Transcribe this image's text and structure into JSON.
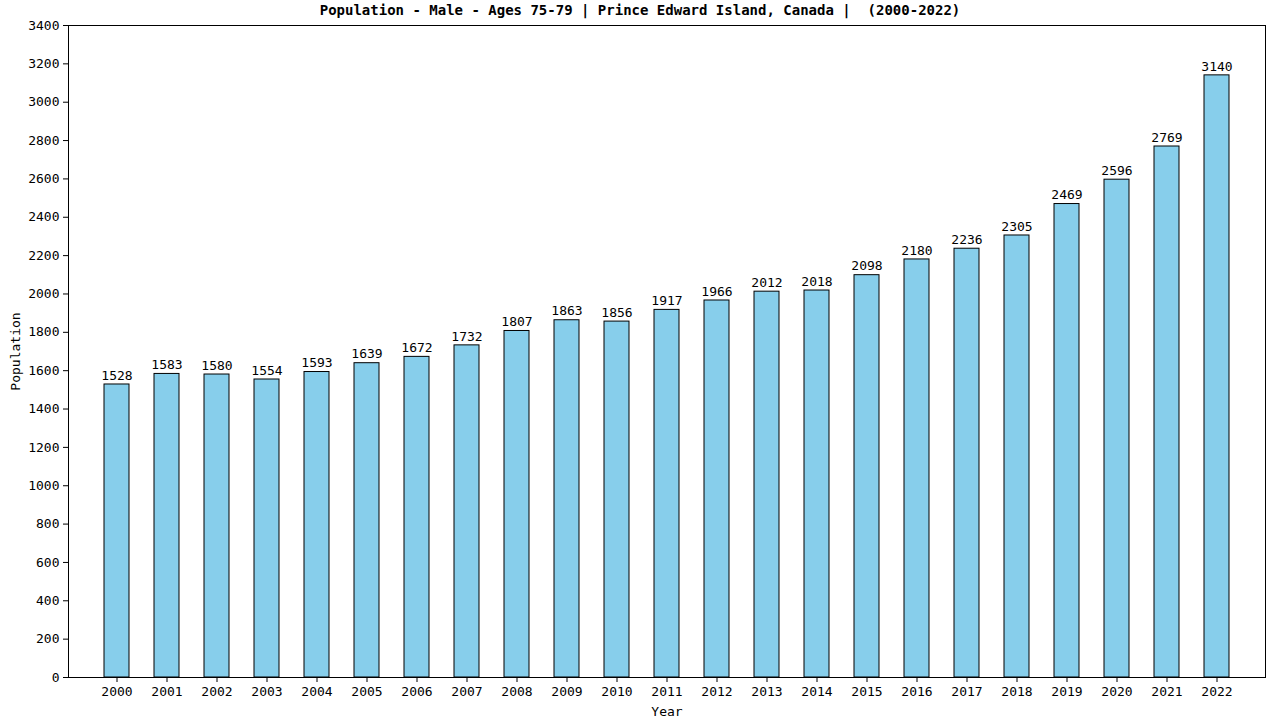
{
  "chart_data": {
    "type": "bar",
    "title": "Population - Male - Ages 75-79 | Prince Edward Island, Canada |  (2000-2022)",
    "x_label": "Year",
    "y_label": "Population",
    "categories": [
      "2000",
      "2001",
      "2002",
      "2003",
      "2004",
      "2005",
      "2006",
      "2007",
      "2008",
      "2009",
      "2010",
      "2011",
      "2012",
      "2013",
      "2014",
      "2015",
      "2016",
      "2017",
      "2018",
      "2019",
      "2020",
      "2021",
      "2022"
    ],
    "values": [
      1528,
      1583,
      1580,
      1554,
      1593,
      1639,
      1672,
      1732,
      1807,
      1863,
      1856,
      1917,
      1966,
      2012,
      2018,
      2098,
      2180,
      2236,
      2305,
      2469,
      2596,
      2769,
      3140
    ],
    "color": "#87ceeb",
    "ylim": [
      0,
      3400
    ],
    "yticks": [
      0,
      200,
      400,
      600,
      800,
      1000,
      1200,
      1400,
      1600,
      1800,
      2000,
      2200,
      2400,
      2600,
      2800,
      3000,
      3200,
      3400
    ],
    "grid": false,
    "data_labels": true
  }
}
